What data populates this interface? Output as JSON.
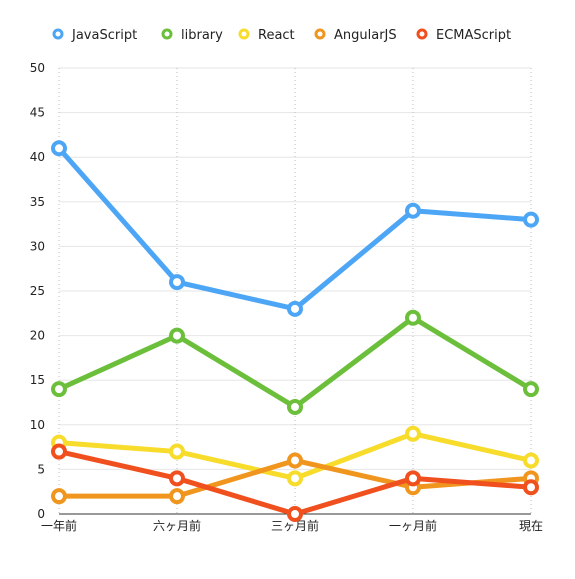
{
  "chart_data": {
    "type": "line",
    "title": "",
    "xlabel": "",
    "ylabel": "",
    "categories": [
      "一年前",
      "六ヶ月前",
      "三ヶ月前",
      "一ヶ月前",
      "現在"
    ],
    "ylim": [
      0,
      50
    ],
    "yticks": [
      0,
      5,
      10,
      15,
      20,
      25,
      30,
      35,
      40,
      45,
      50
    ],
    "grid": {
      "horizontal": true,
      "vertical": true,
      "vertical_style": "dotted"
    },
    "legend": "top",
    "series": [
      {
        "name": "JavaScript",
        "color": "#4da6f5",
        "values": [
          41,
          26,
          23,
          34,
          33
        ]
      },
      {
        "name": "library",
        "color": "#6bbf3a",
        "values": [
          14,
          20,
          12,
          22,
          14
        ]
      },
      {
        "name": "React",
        "color": "#f7dc2b",
        "values": [
          8,
          7,
          4,
          9,
          6
        ]
      },
      {
        "name": "AngularJS",
        "color": "#f0961f",
        "values": [
          2,
          2,
          6,
          3,
          4
        ]
      },
      {
        "name": "ECMAScript",
        "color": "#f0501e",
        "values": [
          7,
          4,
          0,
          4,
          3
        ]
      }
    ]
  }
}
